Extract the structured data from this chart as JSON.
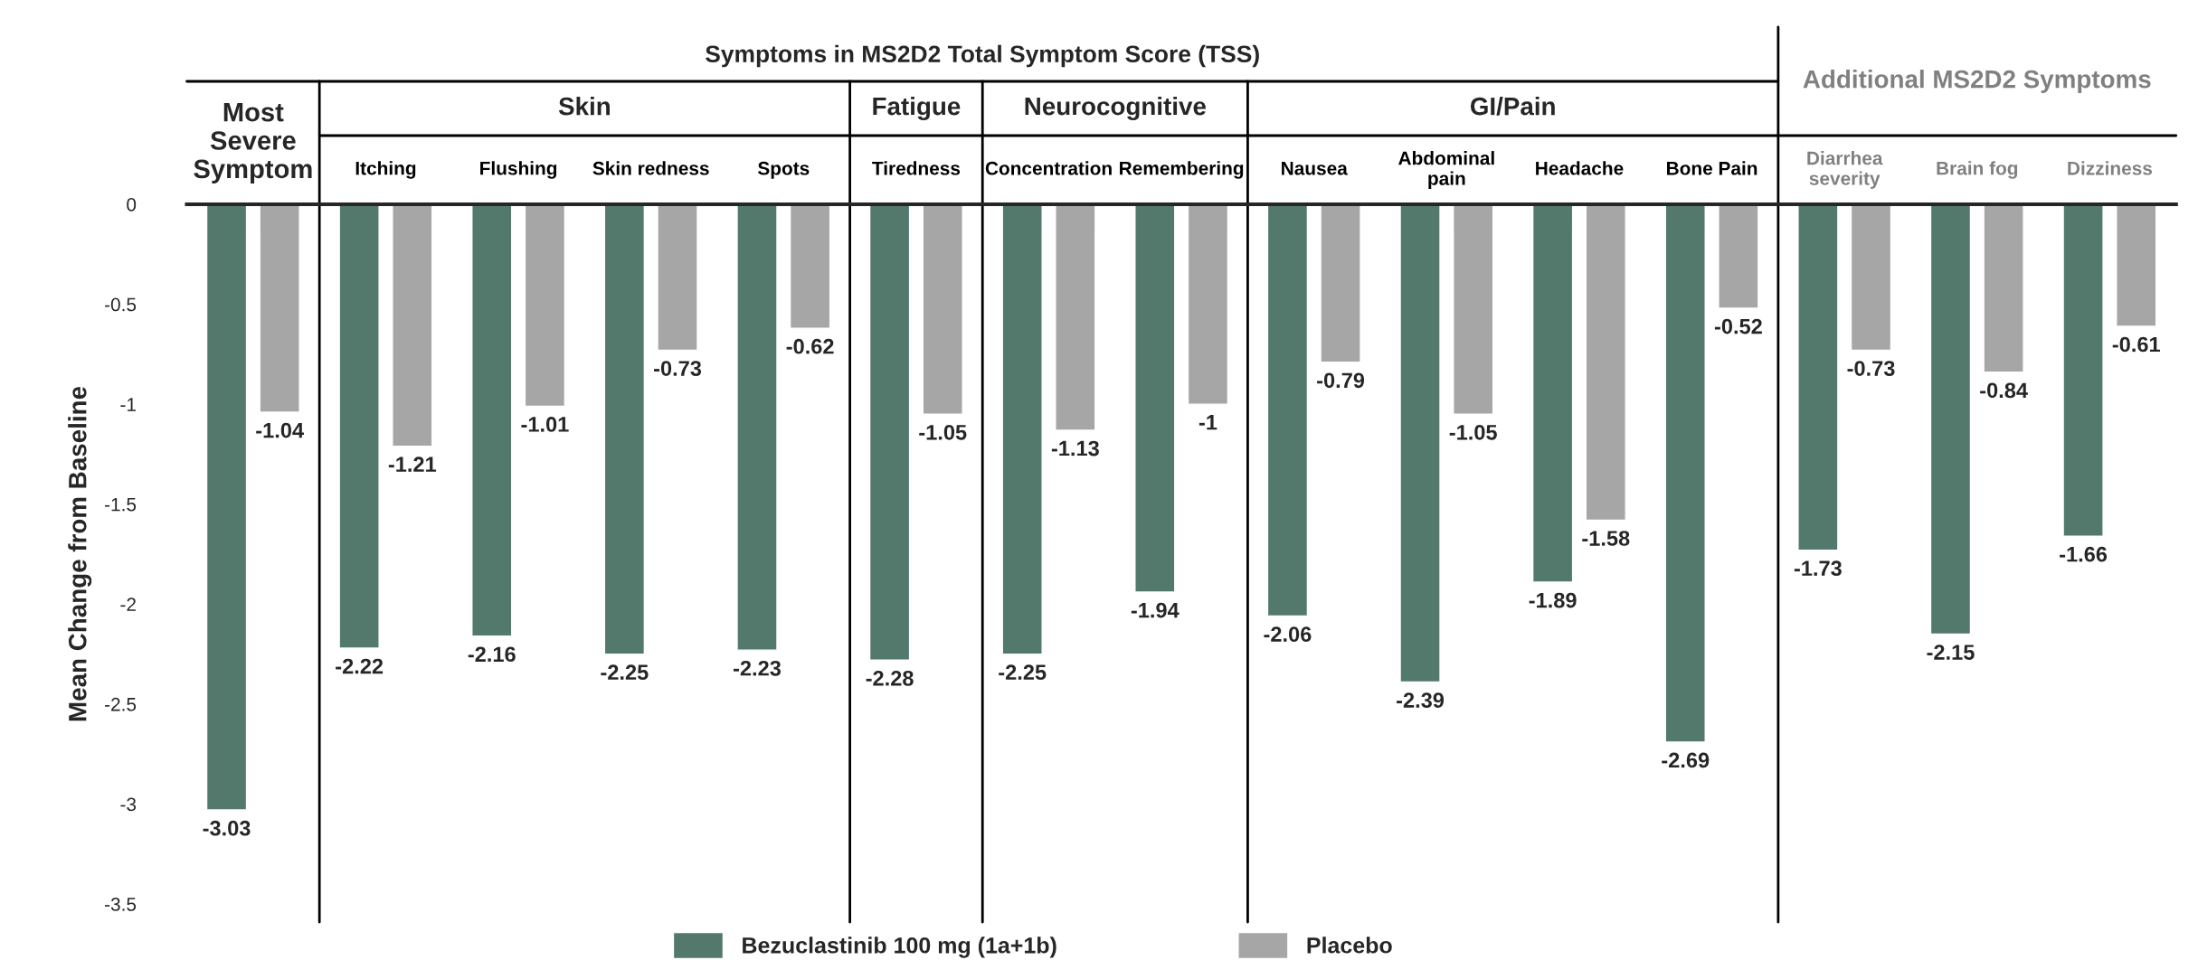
{
  "chart_data": {
    "type": "bar",
    "ylabel": "Mean Change from Baseline",
    "categories": [
      "Most\nSevere\nSymptom",
      "Itching",
      "Flushing",
      "Skin redness",
      "Spots",
      "Tiredness",
      "Concentration",
      "Remembering",
      "Nausea",
      "Abdominal\npain",
      "Headache",
      "Bone Pain",
      "Diarrhea\nseverity",
      "Brain fog",
      "Dizziness"
    ],
    "series": [
      {
        "name": "Bezuclastinib 100 mg (1a+1b)",
        "color": "#52796b",
        "values": [
          -3.03,
          -2.22,
          -2.16,
          -2.25,
          -2.23,
          -2.28,
          -2.25,
          -1.94,
          -2.06,
          -2.39,
          -1.89,
          -2.69,
          -1.73,
          -2.15,
          -1.66
        ]
      },
      {
        "name": "Placebo",
        "color": "#a6a6a6",
        "values": [
          -1.04,
          -1.21,
          -1.01,
          -0.73,
          -0.62,
          -1.05,
          -1.13,
          -1,
          -0.79,
          -1.05,
          -1.58,
          -0.52,
          -0.73,
          -0.84,
          -0.61
        ]
      }
    ],
    "annotations": [
      "Symptoms in MS2D2 Total Symptom Score (TSS)",
      "Skin",
      "Fatigue",
      "Neurocognitive",
      "GI/Pain",
      "Additional MS2D2 Symptoms"
    ],
    "ylim": [
      -3.5,
      0
    ],
    "yticks": [
      0,
      -0.5,
      -1,
      -1.5,
      -2,
      -2.5,
      -3,
      -3.5
    ],
    "data_labels": true,
    "grid": false,
    "legend": "bottom"
  }
}
